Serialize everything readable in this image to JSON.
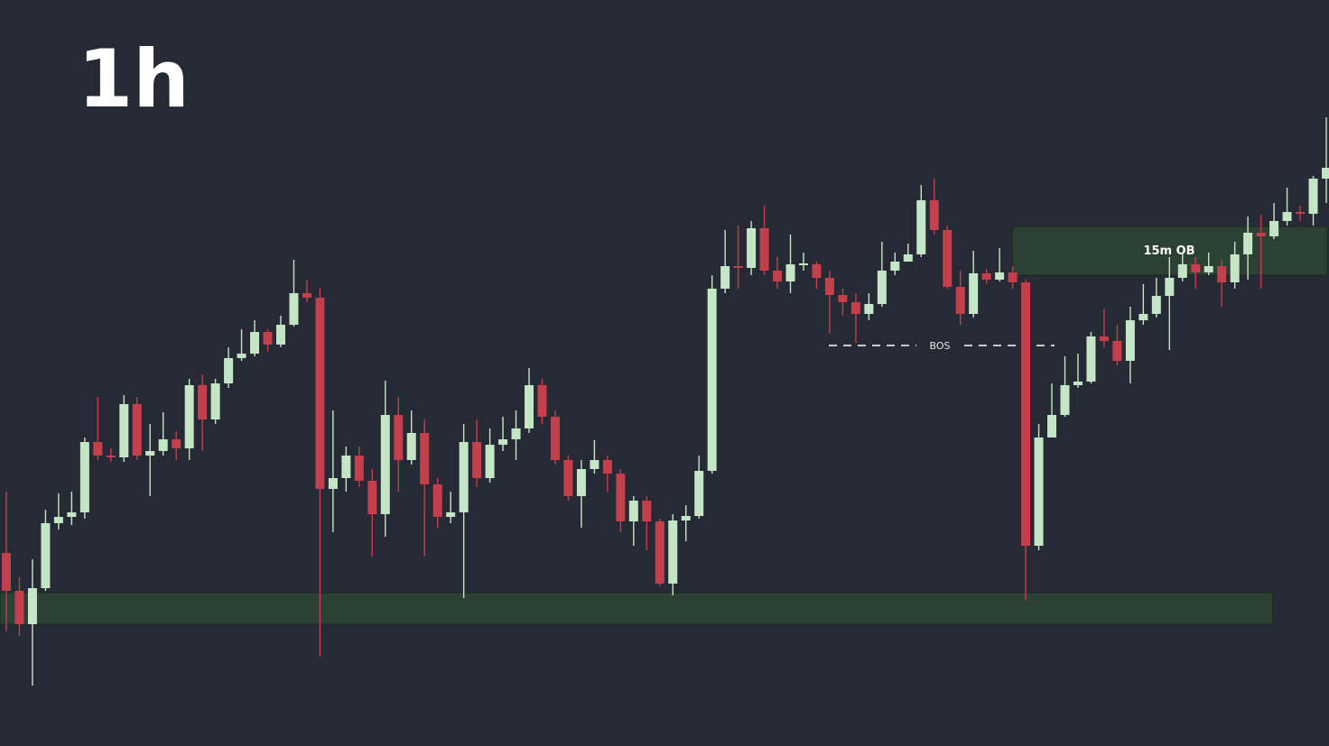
{
  "chart_data": {
    "type": "candlestick",
    "title": "1h",
    "ylim": [
      0,
      827
    ],
    "up_color": "#c5e6c6",
    "down_color": "#c23f4b",
    "zone_color": "#2c4133",
    "open": [
      214,
      172,
      135,
      175,
      247,
      254,
      259,
      337,
      322,
      320,
      379,
      322,
      327,
      340,
      330,
      400,
      362,
      402,
      430,
      435,
      459,
      445,
      467,
      502,
      497,
      285,
      297,
      322,
      294,
      257,
      367,
      317,
      347,
      290,
      254,
      259,
      337,
      297,
      334,
      340,
      352,
      400,
      365,
      317,
      277,
      307,
      317,
      302,
      249,
      272,
      249,
      180,
      250,
      255,
      305,
      507,
      532,
      530,
      574,
      527,
      515,
      534,
      534,
      519,
      500,
      492,
      479,
      490,
      527,
      537,
      545,
      605,
      572,
      509,
      479,
      524,
      517,
      525,
      514,
      222,
      342,
      367,
      400,
      404,
      454,
      449,
      427,
      472,
      479,
      499,
      519,
      534,
      525,
      532,
      514,
      545,
      569,
      565,
      582,
      592,
      590,
      629
    ],
    "high": [
      282,
      187,
      207,
      262,
      280,
      282,
      342,
      387,
      330,
      389,
      387,
      357,
      370,
      349,
      407,
      412,
      407,
      442,
      462,
      472,
      462,
      477,
      539,
      517,
      507,
      372,
      332,
      332,
      307,
      405,
      387,
      372,
      362,
      297,
      282,
      357,
      362,
      352,
      365,
      372,
      419,
      407,
      372,
      322,
      317,
      339,
      322,
      307,
      277,
      277,
      252,
      257,
      267,
      322,
      522,
      572,
      577,
      582,
      599,
      542,
      567,
      547,
      537,
      527,
      507,
      502,
      502,
      559,
      547,
      557,
      622,
      629,
      577,
      527,
      549,
      529,
      552,
      532,
      517,
      357,
      402,
      432,
      435,
      459,
      485,
      467,
      487,
      512,
      519,
      542,
      547,
      542,
      547,
      539,
      559,
      587,
      589,
      602,
      619,
      599,
      632,
      697
    ],
    "low": [
      127,
      122,
      67,
      172,
      240,
      245,
      252,
      317,
      315,
      315,
      317,
      277,
      322,
      317,
      317,
      327,
      357,
      397,
      427,
      432,
      437,
      442,
      465,
      492,
      99,
      237,
      282,
      287,
      210,
      232,
      282,
      312,
      210,
      242,
      247,
      164,
      287,
      292,
      327,
      317,
      347,
      357,
      312,
      272,
      242,
      302,
      282,
      237,
      222,
      217,
      177,
      167,
      227,
      252,
      302,
      502,
      507,
      522,
      522,
      507,
      502,
      527,
      507,
      457,
      477,
      447,
      472,
      487,
      522,
      537,
      542,
      567,
      507,
      467,
      475,
      512,
      515,
      507,
      162,
      217,
      342,
      365,
      397,
      402,
      442,
      422,
      402,
      467,
      475,
      439,
      515,
      507,
      522,
      487,
      507,
      517,
      507,
      562,
      577,
      582,
      577,
      602
    ],
    "close": [
      172,
      135,
      175,
      247,
      254,
      259,
      337,
      322,
      320,
      379,
      322,
      327,
      340,
      330,
      400,
      362,
      402,
      430,
      435,
      459,
      445,
      467,
      502,
      497,
      285,
      297,
      322,
      294,
      257,
      367,
      317,
      347,
      290,
      254,
      259,
      337,
      297,
      334,
      340,
      352,
      400,
      365,
      317,
      277,
      307,
      317,
      302,
      249,
      272,
      249,
      180,
      250,
      255,
      305,
      507,
      532,
      530,
      574,
      527,
      515,
      534,
      535,
      519,
      500,
      492,
      479,
      490,
      527,
      537,
      545,
      605,
      572,
      509,
      479,
      524,
      517,
      525,
      514,
      222,
      342,
      367,
      400,
      404,
      454,
      449,
      427,
      472,
      479,
      499,
      519,
      534,
      525,
      532,
      514,
      545,
      569,
      565,
      582,
      592,
      590,
      629,
      641
    ],
    "zones": [
      {
        "low": 135,
        "high": 170
      },
      {
        "low": 522,
        "high": 576,
        "label": "15m OB"
      }
    ],
    "bos": {
      "label": "BOS",
      "value": 444
    }
  }
}
